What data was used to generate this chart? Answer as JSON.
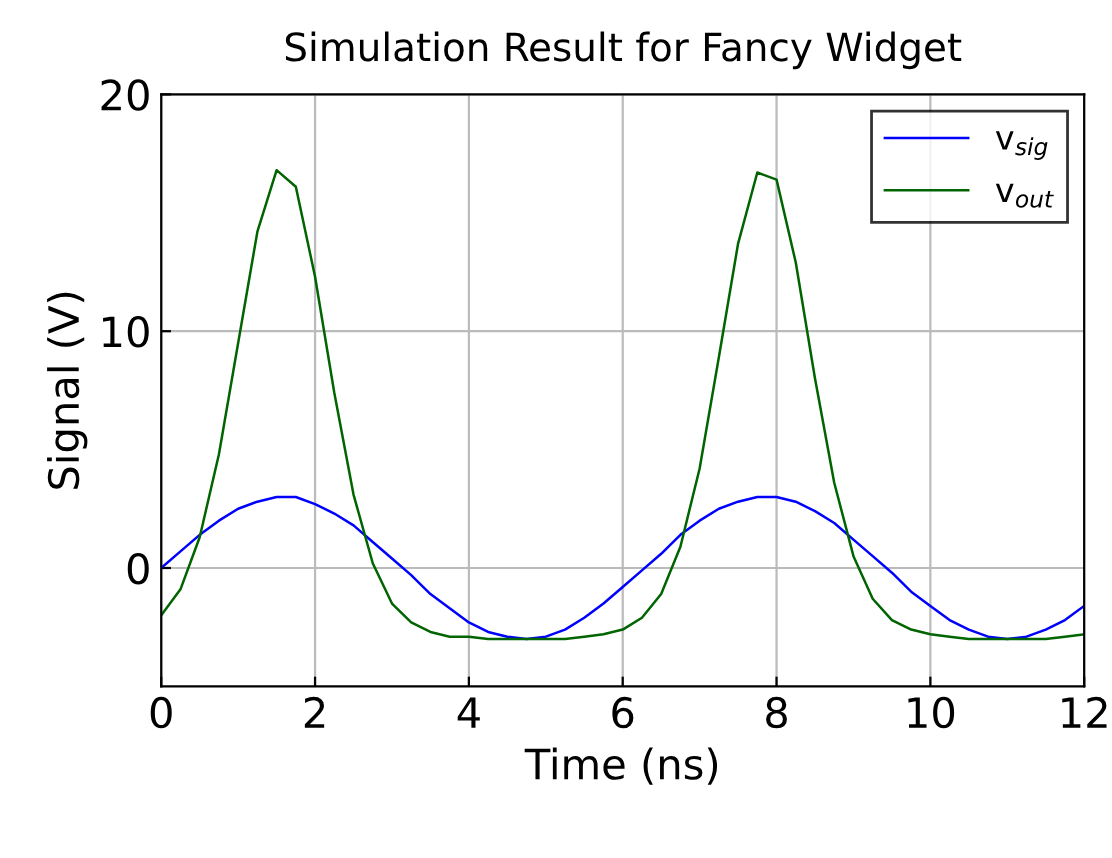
{
  "chart_data": {
    "type": "line",
    "title": "Simulation Result for Fancy Widget",
    "xlabel": "Time (ns)",
    "ylabel": "Signal (V)",
    "xlim": [
      0,
      12
    ],
    "ylim": [
      -5,
      20
    ],
    "xticks": [
      0,
      2,
      4,
      6,
      8,
      10,
      12
    ],
    "yticks": [
      0,
      10,
      20
    ],
    "grid": true,
    "legend": "top right",
    "marker": "none",
    "line_style": "solid",
    "x": [
      0,
      0.25,
      0.5,
      0.75,
      1,
      1.25,
      1.5,
      1.75,
      2,
      2.25,
      2.5,
      2.75,
      3,
      3.25,
      3.5,
      3.75,
      4,
      4.25,
      4.5,
      4.75,
      5,
      5.25,
      5.5,
      5.75,
      6,
      6.25,
      6.5,
      6.75,
      7,
      7.25,
      7.5,
      7.75,
      8,
      8.25,
      8.5,
      8.75,
      9,
      9.25,
      9.5,
      9.75,
      10,
      10.25,
      10.5,
      10.75,
      11,
      11.25,
      11.5,
      11.75,
      12
    ],
    "series": [
      {
        "name": "v$_{sig}$",
        "color": "#0000ff",
        "values": [
          0,
          0.7,
          1.4,
          2.0,
          2.5,
          2.8,
          3.0,
          3.0,
          2.7,
          2.3,
          1.8,
          1.1,
          0.4,
          -0.3,
          -1.1,
          -1.7,
          -2.3,
          -2.7,
          -2.9,
          -3.0,
          -2.9,
          -2.6,
          -2.1,
          -1.5,
          -0.8,
          -0.1,
          0.6,
          1.4,
          2.0,
          2.5,
          2.8,
          3.0,
          3.0,
          2.8,
          2.4,
          1.9,
          1.2,
          0.5,
          -0.2,
          -1.0,
          -1.6,
          -2.2,
          -2.6,
          -2.9,
          -3.0,
          -2.9,
          -2.6,
          -2.2,
          -1.6
        ]
      },
      {
        "name": "v$_{out}$",
        "color": "#006400",
        "values": [
          -2.0,
          -0.9,
          1.3,
          4.8,
          9.5,
          14.2,
          16.8,
          16.1,
          12.3,
          7.4,
          3.1,
          0.2,
          -1.5,
          -2.3,
          -2.7,
          -2.9,
          -2.9,
          -3.0,
          -3.0,
          -3.0,
          -3.0,
          -3.0,
          -2.9,
          -2.8,
          -2.6,
          -2.1,
          -1.1,
          0.9,
          4.2,
          8.9,
          13.7,
          16.7,
          16.4,
          12.9,
          8.0,
          3.6,
          0.5,
          -1.3,
          -2.2,
          -2.6,
          -2.8,
          -2.9,
          -3.0,
          -3.0,
          -3.0,
          -3.0,
          -3.0,
          -2.9,
          -2.8
        ]
      }
    ]
  }
}
